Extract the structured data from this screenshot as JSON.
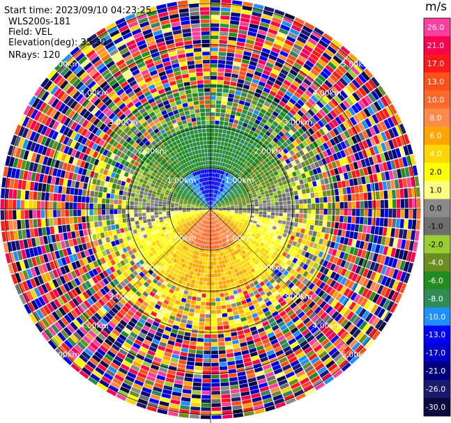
{
  "header": {
    "start_time": "Start time: 2023/09/10 04:23:25",
    "instrument": "WLS200s-181",
    "field": "Field: VEL",
    "elevation": "Elevation(deg): 35.30",
    "nrays": "NRays: 120"
  },
  "colorbar": {
    "unit": "m/s",
    "levels": [
      {
        "label": "26.0",
        "color": "#ff3fa0"
      },
      {
        "label": "21.0",
        "color": "#ff0050"
      },
      {
        "label": "17.0",
        "color": "#ff1a1a"
      },
      {
        "label": "13.0",
        "color": "#ff4f1a"
      },
      {
        "label": "10.0",
        "color": "#ff6a2a"
      },
      {
        "label": "8.0",
        "color": "#ff8a4a"
      },
      {
        "label": "6.0",
        "color": "#ffa500"
      },
      {
        "label": "4.0",
        "color": "#ffd400"
      },
      {
        "label": "2.0",
        "color": "#ffff00"
      },
      {
        "label": "1.0",
        "color": "#ffff80"
      },
      {
        "label": "0.0",
        "color": "#8a8a8a"
      },
      {
        "label": "-1.0",
        "color": "#6e6e6e"
      },
      {
        "label": "-2.0",
        "color": "#9acd32"
      },
      {
        "label": "-4.0",
        "color": "#6b8e23"
      },
      {
        "label": "-6.0",
        "color": "#228b22"
      },
      {
        "label": "-8.0",
        "color": "#2e8b57"
      },
      {
        "label": "-10.0",
        "color": "#1e90ff"
      },
      {
        "label": "-13.0",
        "color": "#0000ff"
      },
      {
        "label": "-17.0",
        "color": "#0000cd"
      },
      {
        "label": "-21.0",
        "color": "#000080"
      },
      {
        "label": "-26.0",
        "color": "#1a1a6e"
      },
      {
        "label": "-30.0",
        "color": "#0a0a40"
      }
    ]
  },
  "chart_data": {
    "type": "heatmap",
    "projection": "polar PPI",
    "nrays": 120,
    "range_ring_labels": [
      "1.00km",
      "2.00km",
      "3.00km",
      "4.00km",
      "5.00km"
    ],
    "range_rings_km": [
      1,
      2,
      3,
      4,
      5
    ],
    "max_range_km": 5.2,
    "value_range": [
      -30,
      26
    ],
    "unit": "m/s",
    "notes": "Near center: negative velocities (blue/green) to the north, positive (red/orange/yellow) to the south; outer ranges are noisy multicolored."
  }
}
